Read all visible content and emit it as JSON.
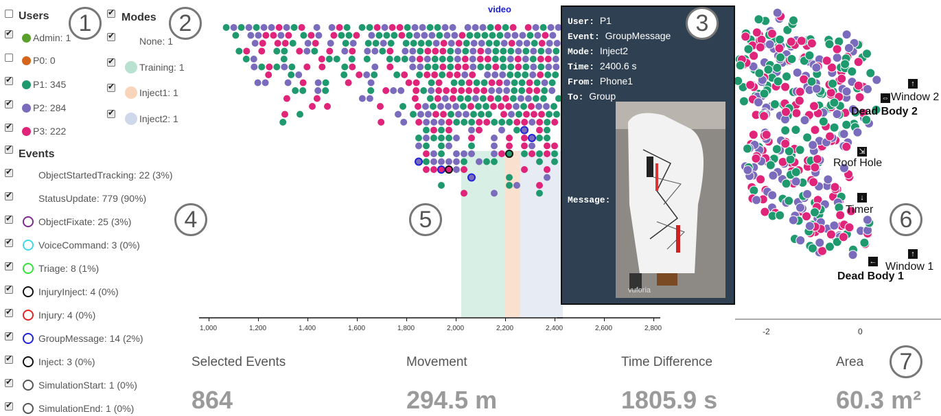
{
  "users": {
    "header": "Users",
    "items": [
      {
        "label": "Admin: 1",
        "color": "#5aa02c",
        "checked": true
      },
      {
        "label": "P0: 0",
        "color": "#d4651b",
        "checked": false
      },
      {
        "label": "P1: 345",
        "color": "#1f9a6e",
        "checked": true
      },
      {
        "label": "P2: 284",
        "color": "#7a6bbd",
        "checked": true
      },
      {
        "label": "P3: 222",
        "color": "#e0247a",
        "checked": true
      }
    ]
  },
  "modes": {
    "header": "Modes",
    "items": [
      {
        "label": "None: 1",
        "color": "",
        "checked": true
      },
      {
        "label": "Training: 1",
        "color": "#b8e2cf",
        "checked": true
      },
      {
        "label": "Inject1: 1",
        "color": "#f8d4bb",
        "checked": true
      },
      {
        "label": "Inject2: 1",
        "color": "#cfd8ea",
        "checked": true
      }
    ]
  },
  "events": {
    "header": "Events",
    "items": [
      {
        "label": "ObjectStartedTracking: 22 (3%)",
        "ring": "",
        "checked": true
      },
      {
        "label": "StatusUpdate: 779 (90%)",
        "ring": "",
        "checked": true
      },
      {
        "label": "ObjectFixate: 25 (3%)",
        "ring": "#7b2b8b",
        "checked": true
      },
      {
        "label": "VoiceCommand: 3 (0%)",
        "ring": "#3fd9e8",
        "checked": true
      },
      {
        "label": "Triage: 8 (1%)",
        "ring": "#33e33b",
        "checked": true
      },
      {
        "label": "InjuryInject: 4 (0%)",
        "ring": "#111111",
        "checked": true
      },
      {
        "label": "Injury: 4 (0%)",
        "ring": "#e02626",
        "checked": true
      },
      {
        "label": "GroupMessage: 14 (2%)",
        "ring": "#1f22d8",
        "checked": true
      },
      {
        "label": "Inject: 3 (0%)",
        "ring": "#111111",
        "checked": true
      },
      {
        "label": "SimulationStart: 1 (0%)",
        "ring": "#555555",
        "checked": true
      },
      {
        "label": "SimulationEnd: 1 (0%)",
        "ring": "#555555",
        "checked": true
      }
    ]
  },
  "timeline": {
    "video_link": "video",
    "ticks": [
      "1,000",
      "1,200",
      "1,400",
      "1,600",
      "1,800",
      "2,000",
      "2,200",
      "2,400",
      "2,600",
      "2,800"
    ]
  },
  "tooltip": {
    "user_label": "User:",
    "user": "P1",
    "event_label": "Event:",
    "event": "GroupMessage",
    "mode_label": "Mode:",
    "mode": "Inject2",
    "time_label": "Time:",
    "time": "2400.6 s",
    "from_label": "From:",
    "from": "Phone1",
    "to_label": "To:",
    "to": "Group",
    "message_label": "Message:",
    "image_watermark": "vuforia"
  },
  "map": {
    "labels": [
      "Window 2",
      "Dead Body 2",
      "Roof Hole",
      "Timer",
      "Window 1",
      "Dead Body 1"
    ],
    "ticks": [
      "-2",
      "0"
    ]
  },
  "stats": [
    {
      "label": "Selected Events",
      "value": "864"
    },
    {
      "label": "Movement",
      "value": "294.5 m"
    },
    {
      "label": "Time Difference",
      "value": "1805.9 s"
    },
    {
      "label": "Area",
      "value": "60.3 m²"
    }
  ],
  "badges": [
    "1",
    "2",
    "3",
    "4",
    "5",
    "6",
    "7"
  ],
  "colors": {
    "p1": "#1f9a6e",
    "p2": "#7a6bbd",
    "p3": "#e0247a"
  }
}
